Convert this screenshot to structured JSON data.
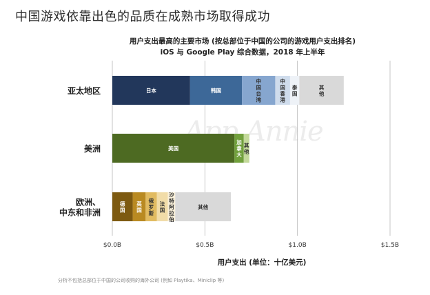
{
  "page_title": "中国游戏依靠出色的品质在成熟市场取得成功",
  "watermark": "App Annie",
  "footnote": "分析不包括总部位于中国的公司收购的海外公司 (例如 Playtika、Miniclip 等)",
  "chart_data": {
    "type": "bar",
    "stacked": true,
    "orientation": "horizontal",
    "title": "用户支出最高的主要市场 (按总部位于中国的公司的游戏用户支出排名)",
    "subtitle": "iOS 与 Google Play 综合数据，2018 年上半年",
    "xlabel": "用户支出 (单位：十亿美元)",
    "xlim": [
      0,
      1.5
    ],
    "xticks": [
      "$0.0B",
      "$0.5B",
      "$1.0B",
      "$1.5B"
    ],
    "grid": true,
    "categories": [
      {
        "label": [
          "亚太地区"
        ],
        "segments": [
          {
            "name": "日本",
            "value": 0.42,
            "color": "#22375b"
          },
          {
            "name": "韩国",
            "value": 0.28,
            "color": "#3d6898"
          },
          {
            "name": "中国台湾",
            "value": 0.18,
            "color": "#86a6cf"
          },
          {
            "name": "中国香港",
            "value": 0.08,
            "color": "#cfdcec"
          },
          {
            "name": "泰国",
            "value": 0.05,
            "color": "#eef2f7"
          },
          {
            "name": "其他",
            "value": 0.24,
            "color": "#d9d9d9"
          }
        ]
      },
      {
        "label": [
          "美洲"
        ],
        "segments": [
          {
            "name": "美国",
            "value": 0.66,
            "color": "#4d6a22"
          },
          {
            "name": "加拿大",
            "value": 0.05,
            "color": "#71a03c"
          },
          {
            "name": "其他",
            "value": 0.03,
            "color": "#c3d99a"
          }
        ]
      },
      {
        "label": [
          "欧洲、",
          "中东和非洲"
        ],
        "segments": [
          {
            "name": "德国",
            "value": 0.11,
            "color": "#7d5a11"
          },
          {
            "name": "英国",
            "value": 0.07,
            "color": "#b98a22"
          },
          {
            "name": "俄罗斯",
            "value": 0.06,
            "color": "#e1bb61"
          },
          {
            "name": "法国",
            "value": 0.06,
            "color": "#f1dca8"
          },
          {
            "name": "沙特阿拉伯",
            "value": 0.04,
            "color": "#f9f0da"
          },
          {
            "name": "其他",
            "value": 0.3,
            "color": "#d9d9d9"
          }
        ]
      }
    ]
  }
}
